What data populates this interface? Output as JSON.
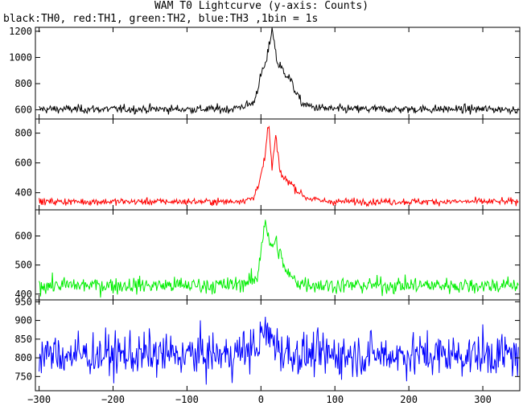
{
  "title": "WAM T0 Lightcurve (y-axis: Counts)",
  "subtitle": "black:TH0, red:TH1, green:TH2, blue:TH3 ,1bin = 1s",
  "chart_data": {
    "type": "line",
    "xlim": [
      -305,
      350
    ],
    "xticks": [
      -300,
      -200,
      -100,
      0,
      100,
      200,
      300
    ],
    "xtick_labels": [
      "−300",
      "−200",
      "−100",
      "0",
      "100",
      "200",
      "300"
    ],
    "bin_seconds": 1,
    "grid": false,
    "panels": [
      {
        "name": "TH0",
        "color": "#000000",
        "ylim": [
          530,
          1230
        ],
        "yticks": [
          600,
          800,
          1000,
          1200
        ],
        "ytick_labels": [
          "600",
          "800",
          "1000",
          "1200"
        ],
        "baseline": 605,
        "noise": 25,
        "profile": [
          [
            -40,
            605
          ],
          [
            -10,
            650
          ],
          [
            0,
            860
          ],
          [
            8,
            980
          ],
          [
            15,
            1230
          ],
          [
            22,
            960
          ],
          [
            30,
            900
          ],
          [
            38,
            850
          ],
          [
            45,
            760
          ],
          [
            55,
            650
          ],
          [
            70,
            620
          ],
          [
            100,
            605
          ]
        ]
      },
      {
        "name": "TH1",
        "color": "#ff0000",
        "ylim": [
          285,
          895
        ],
        "yticks": [
          400,
          600,
          800
        ],
        "ytick_labels": [
          "400",
          "600",
          "800"
        ],
        "baseline": 340,
        "noise": 18,
        "profile": [
          [
            -40,
            340
          ],
          [
            -10,
            360
          ],
          [
            0,
            520
          ],
          [
            6,
            640
          ],
          [
            10,
            880
          ],
          [
            15,
            560
          ],
          [
            20,
            780
          ],
          [
            25,
            560
          ],
          [
            30,
            500
          ],
          [
            40,
            470
          ],
          [
            48,
            420
          ],
          [
            60,
            370
          ],
          [
            80,
            345
          ],
          [
            100,
            340
          ]
        ]
      },
      {
        "name": "TH2",
        "color": "#00ee00",
        "ylim": [
          380,
          690
        ],
        "yticks": [
          400,
          500,
          600
        ],
        "ytick_labels": [
          "400",
          "500",
          "600"
        ],
        "baseline": 430,
        "noise": 22,
        "profile": [
          [
            -40,
            430
          ],
          [
            -5,
            450
          ],
          [
            0,
            560
          ],
          [
            6,
            660
          ],
          [
            12,
            560
          ],
          [
            20,
            580
          ],
          [
            28,
            520
          ],
          [
            35,
            470
          ],
          [
            50,
            440
          ],
          [
            80,
            430
          ]
        ]
      },
      {
        "name": "TH3",
        "color": "#0000ff",
        "ylim": [
          712,
          955
        ],
        "yticks": [
          750,
          800,
          850,
          900,
          950
        ],
        "ytick_labels": [
          "750",
          "800",
          "850",
          "900",
          "950"
        ],
        "baseline": 808,
        "noise": 45,
        "profile": [
          [
            -40,
            808
          ],
          [
            -5,
            830
          ],
          [
            5,
            870
          ],
          [
            15,
            850
          ],
          [
            30,
            815
          ],
          [
            60,
            808
          ]
        ]
      }
    ]
  }
}
